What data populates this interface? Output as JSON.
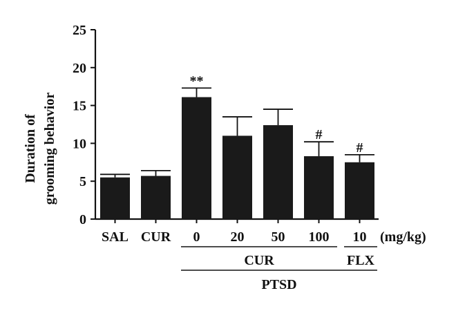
{
  "chart_data": {
    "type": "bar",
    "categories": [
      "SAL",
      "CUR",
      "0",
      "20",
      "50",
      "100",
      "10"
    ],
    "values": [
      5.5,
      5.7,
      16.1,
      11.0,
      12.4,
      8.3,
      7.5
    ],
    "errors": [
      0.4,
      0.7,
      1.2,
      2.5,
      2.1,
      1.9,
      1.0
    ],
    "significance": [
      "",
      "",
      "**",
      "",
      "",
      "#",
      "#"
    ],
    "unit_label": "(mg/kg)",
    "ylabel_lines": [
      "Duration of",
      "grooming behavior"
    ],
    "ylim": [
      0,
      25
    ],
    "yticks": [
      0,
      5,
      10,
      15,
      20,
      25
    ],
    "group_labels": {
      "drug_cur": "CUR",
      "drug_flx": "FLX",
      "condition": "PTSD"
    },
    "bar_color": "#1a1a1a",
    "grid": false,
    "legend": "none"
  }
}
